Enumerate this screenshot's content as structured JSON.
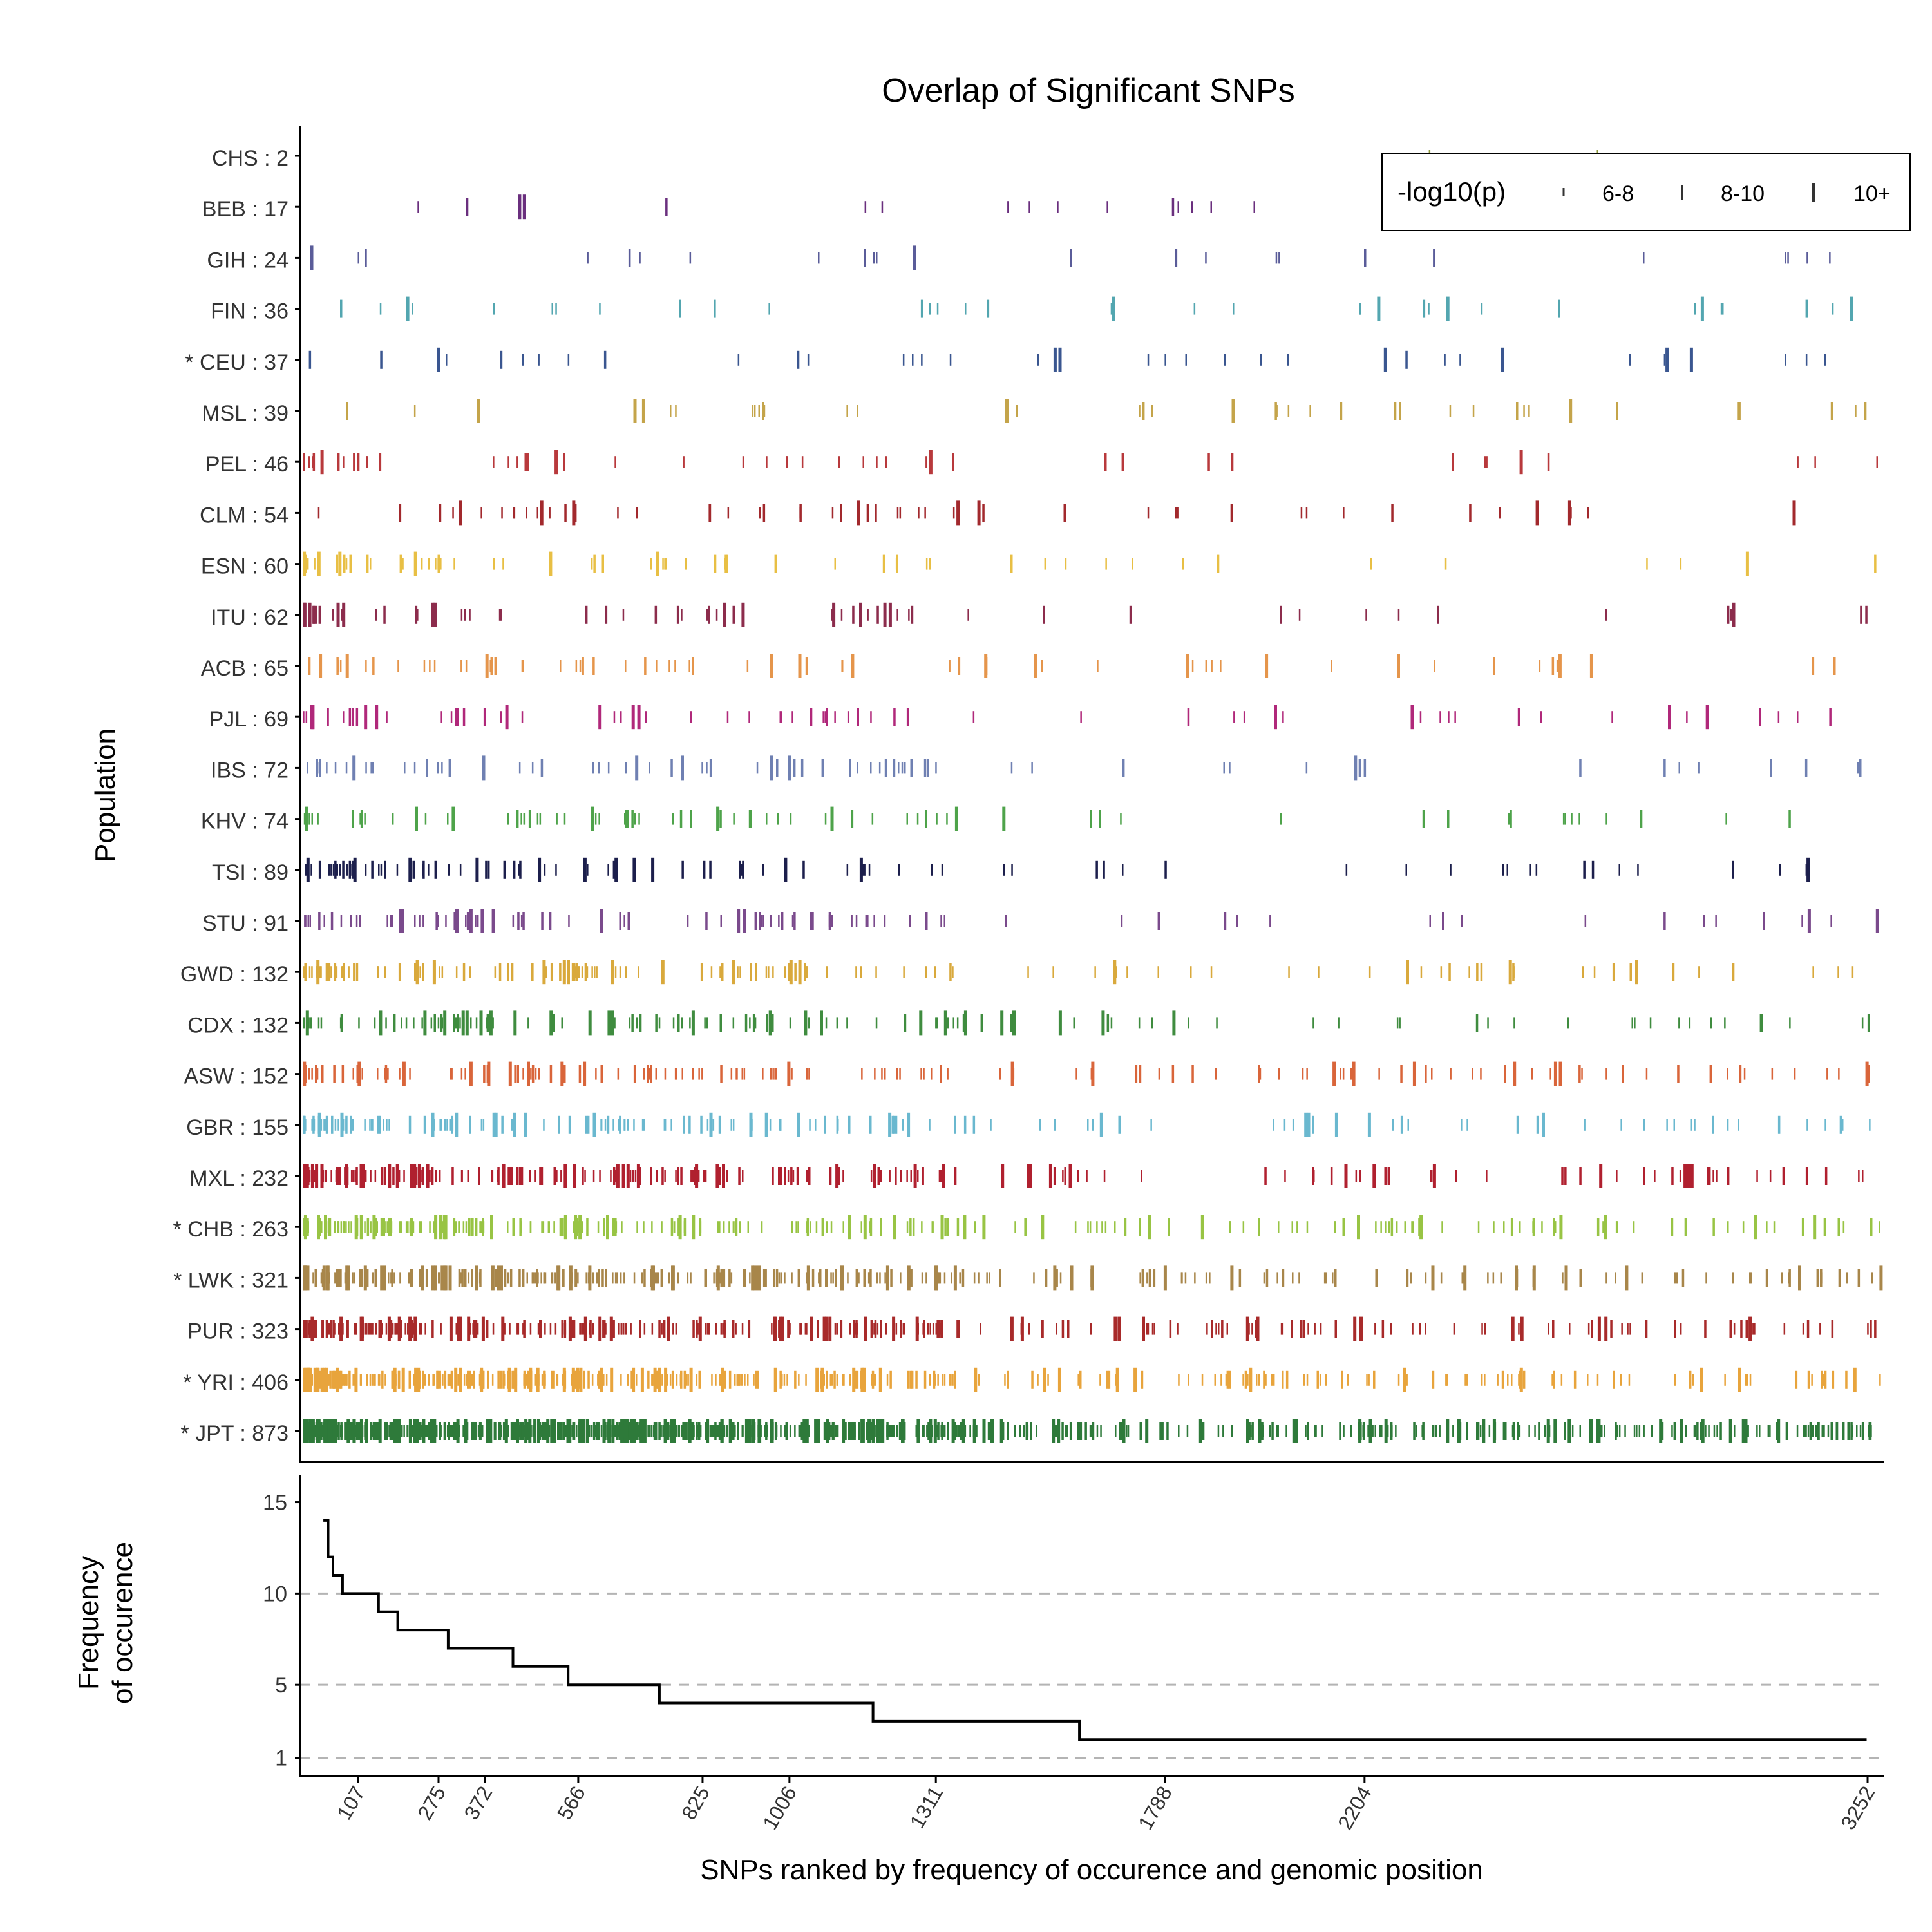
{
  "chart_data": {
    "title": "Overlap of Significant SNPs",
    "top_panel": {
      "type": "strip",
      "ylabel": "Population",
      "populations": [
        {
          "name": "CHS",
          "count": "2",
          "starred": false,
          "color": "#8e9a3a"
        },
        {
          "name": "BEB",
          "count": "17",
          "starred": false,
          "color": "#6a2f7e"
        },
        {
          "name": "GIH",
          "count": "24",
          "starred": false,
          "color": "#5a5c99"
        },
        {
          "name": "FIN",
          "count": "36",
          "starred": false,
          "color": "#53a6b0"
        },
        {
          "name": "CEU",
          "count": "37",
          "starred": true,
          "color": "#3a5690"
        },
        {
          "name": "MSL",
          "count": "39",
          "starred": false,
          "color": "#c4a44a"
        },
        {
          "name": "PEL",
          "count": "46",
          "starred": false,
          "color": "#b8393c"
        },
        {
          "name": "CLM",
          "count": "54",
          "starred": false,
          "color": "#a2292d"
        },
        {
          "name": "ESN",
          "count": "60",
          "starred": false,
          "color": "#e8bf44"
        },
        {
          "name": "ITU",
          "count": "62",
          "starred": false,
          "color": "#8c2c4c"
        },
        {
          "name": "ACB",
          "count": "65",
          "starred": false,
          "color": "#e5954b"
        },
        {
          "name": "PJL",
          "count": "69",
          "starred": false,
          "color": "#b0287a"
        },
        {
          "name": "IBS",
          "count": "72",
          "starred": false,
          "color": "#6f80b2"
        },
        {
          "name": "KHV",
          "count": "74",
          "starred": false,
          "color": "#4ea34a"
        },
        {
          "name": "TSI",
          "count": "89",
          "starred": false,
          "color": "#1c1f4c"
        },
        {
          "name": "STU",
          "count": "91",
          "starred": false,
          "color": "#7a4a8c"
        },
        {
          "name": "GWD",
          "count": "132",
          "starred": false,
          "color": "#d9a93c"
        },
        {
          "name": "CDX",
          "count": "132",
          "starred": false,
          "color": "#3f8c3f"
        },
        {
          "name": "ASW",
          "count": "152",
          "starred": false,
          "color": "#d9653a"
        },
        {
          "name": "GBR",
          "count": "155",
          "starred": false,
          "color": "#6ab8cf"
        },
        {
          "name": "MXL",
          "count": "232",
          "starred": false,
          "color": "#b0202f"
        },
        {
          "name": "CHB",
          "count": "263",
          "starred": true,
          "color": "#98c444"
        },
        {
          "name": "LWK",
          "count": "321",
          "starred": true,
          "color": "#a8864a"
        },
        {
          "name": "PUR",
          "count": "323",
          "starred": false,
          "color": "#a82a2a"
        },
        {
          "name": "YRI",
          "count": "406",
          "starred": true,
          "color": "#e8a43c"
        },
        {
          "name": "JPT",
          "count": "873",
          "starred": true,
          "color": "#2e7a3a"
        }
      ],
      "legend": {
        "title": "-log10(p)",
        "entries": [
          "6-8",
          "8-10",
          "10+"
        ],
        "position": "top-right"
      }
    },
    "bottom_panel": {
      "type": "line",
      "ylabel": "Frequency\nof occurence",
      "xlabel": "SNPs ranked by frequency of occurence and genomic position",
      "xlim": [
        0,
        3252
      ],
      "ylim": [
        0,
        16.5
      ],
      "yticks": [
        1,
        5,
        10,
        15
      ],
      "reference_lines": [
        1,
        5,
        10
      ],
      "xticks": [
        107,
        275,
        372,
        566,
        825,
        1006,
        1311,
        1788,
        2204,
        3252
      ],
      "step_points": [
        {
          "x": 35,
          "y": 14
        },
        {
          "x": 45,
          "y": 12
        },
        {
          "x": 55,
          "y": 11
        },
        {
          "x": 75,
          "y": 10
        },
        {
          "x": 150,
          "y": 9
        },
        {
          "x": 190,
          "y": 8
        },
        {
          "x": 295,
          "y": 7
        },
        {
          "x": 430,
          "y": 6
        },
        {
          "x": 545,
          "y": 5
        },
        {
          "x": 735,
          "y": 4
        },
        {
          "x": 1180,
          "y": 3
        },
        {
          "x": 1610,
          "y": 2
        },
        {
          "x": 3250,
          "y": 2
        }
      ]
    }
  }
}
